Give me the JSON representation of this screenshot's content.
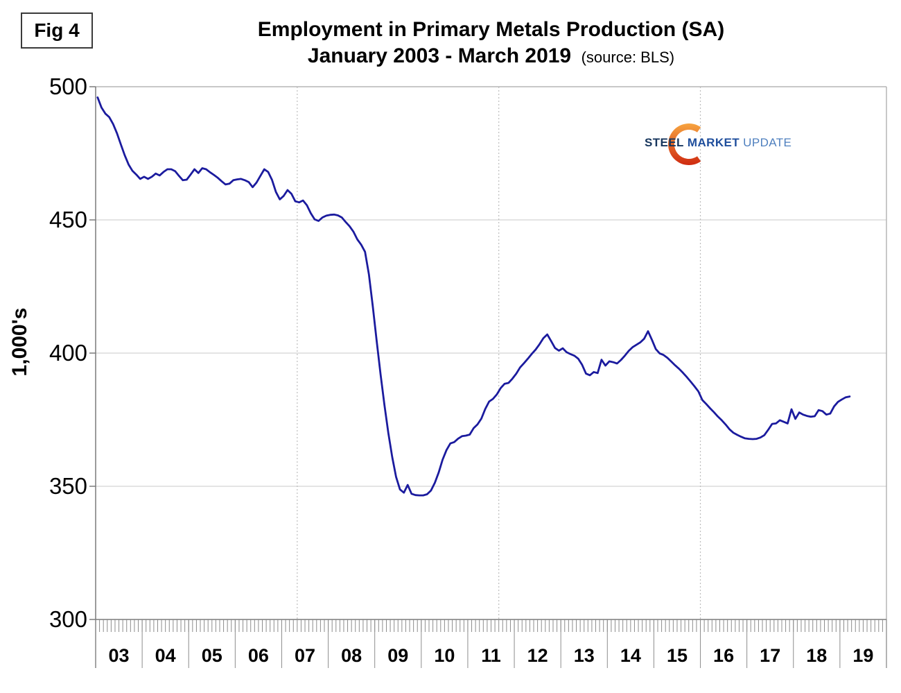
{
  "figure_label": "Fig 4",
  "title": "Employment in Primary Metals Production (SA)",
  "subtitle": "January 2003 - March 2019",
  "source_note": "(source: BLS)",
  "logo": {
    "word1": "STEEL",
    "word2": "MARKET",
    "word3": "UPDATE",
    "word1_color": "#17365d",
    "word2_color": "#1f4e9c",
    "word3_color": "#4e7fbe",
    "crescent_top_color": "#f7a440",
    "crescent_bottom_color": "#cf2a10"
  },
  "chart_data": {
    "type": "line",
    "title": "Employment in Primary Metals Production (SA)",
    "subtitle": "January 2003 - March 2019",
    "xlabel": "",
    "ylabel": "1,000's",
    "ylim": [
      300,
      500
    ],
    "yticks": [
      300,
      350,
      400,
      450,
      500
    ],
    "year_labels": [
      "03",
      "04",
      "05",
      "06",
      "07",
      "08",
      "09",
      "10",
      "11",
      "12",
      "13",
      "14",
      "15",
      "16",
      "17",
      "18",
      "19"
    ],
    "x_start": "2003-01",
    "x_end": "2019-03",
    "frequency": "monthly",
    "grid": {
      "horizontal": "solid at 350/400/450",
      "vertical": "dotted",
      "vertical_gridline_months": [
        52,
        104,
        156
      ]
    },
    "line_color": "#1b1b9e",
    "axis_color": "#7a7a7a",
    "frame_color": "#b5b5b5",
    "gridline_color": "#c8c8c8",
    "series": [
      {
        "name": "Primary metals employment (thousands, seasonally adjusted)",
        "values": [
          496.0,
          492.2,
          489.9,
          488.6,
          486.0,
          482.5,
          478.3,
          474.3,
          470.8,
          468.4,
          467.0,
          465.4,
          466.2,
          465.4,
          466.2,
          467.4,
          466.7,
          468.0,
          469.0,
          469.0,
          468.3,
          466.5,
          464.9,
          465.1,
          467.0,
          469.0,
          467.6,
          469.4,
          469.0,
          467.9,
          466.9,
          465.8,
          464.5,
          463.3,
          463.6,
          464.9,
          465.2,
          465.4,
          464.9,
          464.2,
          462.3,
          464.0,
          466.5,
          469.0,
          468.0,
          465.0,
          460.5,
          457.7,
          459.0,
          461.2,
          459.8,
          457.0,
          456.6,
          457.3,
          455.5,
          452.5,
          450.2,
          449.6,
          450.9,
          451.6,
          451.9,
          452.0,
          451.7,
          450.9,
          449.2,
          447.6,
          445.6,
          442.7,
          440.7,
          438.0,
          429.5,
          417.5,
          404.5,
          392.0,
          380.5,
          370.0,
          361.0,
          353.5,
          348.8,
          347.6,
          350.5,
          347.2,
          346.7,
          346.6,
          346.6,
          347.0,
          348.4,
          351.3,
          355.2,
          360.0,
          363.6,
          366.1,
          366.6,
          367.9,
          368.8,
          369.0,
          369.4,
          371.8,
          373.2,
          375.4,
          379.0,
          381.8,
          382.8,
          384.5,
          386.9,
          388.5,
          388.8,
          390.4,
          392.3,
          394.6,
          396.2,
          397.9,
          399.7,
          401.3,
          403.3,
          405.6,
          407.0,
          404.5,
          401.9,
          400.9,
          401.8,
          400.3,
          399.6,
          399.0,
          397.9,
          395.6,
          392.3,
          391.7,
          392.9,
          392.5,
          397.5,
          395.3,
          396.9,
          396.6,
          396.1,
          397.4,
          399.0,
          400.8,
          402.2,
          403.1,
          404.0,
          405.4,
          408.2,
          405.0,
          401.5,
          399.9,
          399.3,
          398.2,
          396.8,
          395.4,
          394.1,
          392.6,
          391.0,
          389.3,
          387.5,
          385.6,
          382.4,
          380.9,
          379.3,
          377.8,
          376.2,
          374.8,
          373.2,
          371.4,
          370.1,
          369.3,
          368.6,
          368.0,
          367.8,
          367.7,
          367.8,
          368.3,
          369.2,
          371.2,
          373.4,
          373.6,
          374.8,
          374.2,
          373.6,
          378.9,
          375.3,
          377.7,
          376.9,
          376.4,
          376.1,
          376.3,
          378.6,
          378.2,
          376.9,
          377.3,
          380.0,
          381.7,
          382.6,
          383.4,
          383.7
        ]
      }
    ]
  }
}
